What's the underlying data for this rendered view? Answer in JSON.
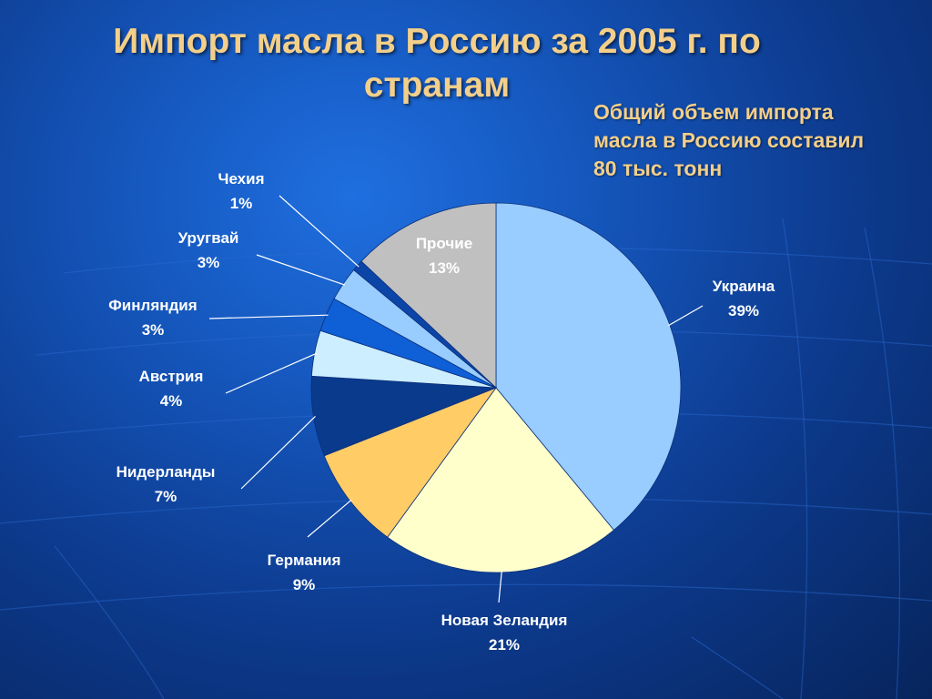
{
  "title_line1": "Импорт масла в Россию за 2005 г. по",
  "title_line2": "странам",
  "note_lines": [
    "Общий объем импорта",
    "масла в Россию составил",
    "80 тыс. тонн"
  ],
  "chart_data": {
    "type": "pie",
    "title": "Импорт масла в Россию за 2005 г. по странам",
    "start": "12 o'clock",
    "direction": "clockwise",
    "slices": [
      {
        "name": "Украина",
        "label": "39%",
        "value": 39,
        "color": "#99ccff"
      },
      {
        "name": "Новая Зеландия",
        "label": "21%",
        "value": 21,
        "color": "#ffffcc"
      },
      {
        "name": "Германия",
        "label": "9%",
        "value": 9,
        "color": "#ffcc66"
      },
      {
        "name": "Нидерланды",
        "label": "7%",
        "value": 7,
        "color": "#0a3a8c"
      },
      {
        "name": "Австрия",
        "label": "4%",
        "value": 4,
        "color": "#cceeff"
      },
      {
        "name": "Финляндия",
        "label": "3%",
        "value": 3,
        "color": "#0f5fd6"
      },
      {
        "name": "Уругвай",
        "label": "3%",
        "value": 3,
        "color": "#99ccff"
      },
      {
        "name": "Чехия",
        "label": "1%",
        "value": 1,
        "color": "#0c45a8"
      },
      {
        "name": "Прочие",
        "label": "13%",
        "value": 13,
        "color": "#c0c0c0"
      }
    ]
  }
}
